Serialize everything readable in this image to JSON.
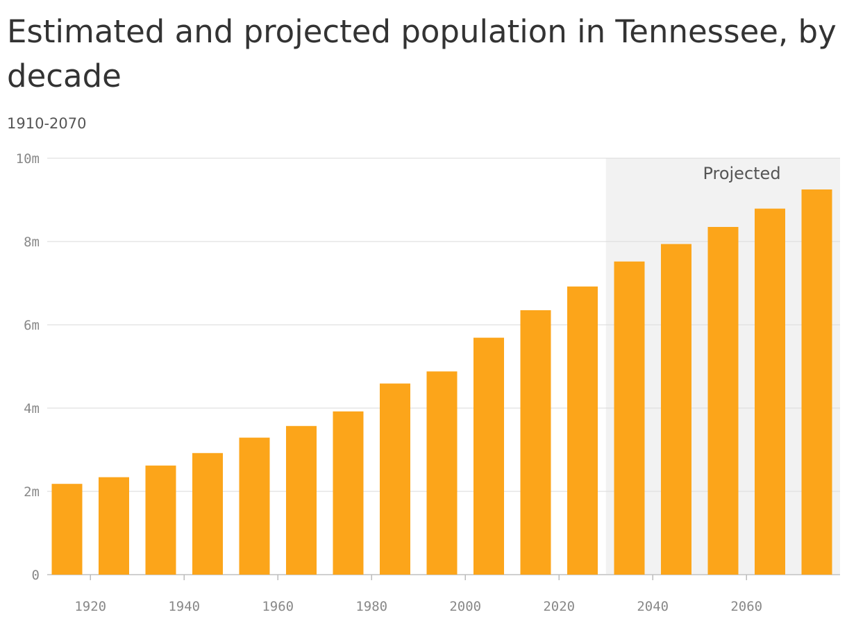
{
  "title": "Estimated and projected population in Tennessee, by decade",
  "subtitle": "1910-2070",
  "colors": {
    "bar": "#fca51a",
    "projected_band": "#f2f2f2",
    "grid": "#e0e0e0",
    "text": "#333333"
  },
  "chart_data": {
    "type": "bar",
    "title": "Estimated and projected population in Tennessee, by decade",
    "subtitle": "1910-2070",
    "xlabel": "",
    "ylabel": "",
    "ylim": [
      0,
      10000000
    ],
    "y_ticks": [
      0,
      2000000,
      4000000,
      6000000,
      8000000,
      10000000
    ],
    "y_tick_labels": [
      "0",
      "2m",
      "4m",
      "6m",
      "8m",
      "10m"
    ],
    "x_tick_labels": [
      "1920",
      "1940",
      "1960",
      "1980",
      "2000",
      "2020",
      "2040",
      "2060"
    ],
    "grid": true,
    "categories": [
      1910,
      1920,
      1930,
      1940,
      1950,
      1960,
      1970,
      1980,
      1990,
      2000,
      2010,
      2020,
      2030,
      2040,
      2050,
      2060,
      2070
    ],
    "values": [
      2180000,
      2340000,
      2620000,
      2920000,
      3290000,
      3570000,
      3920000,
      4590000,
      4880000,
      5690000,
      6350000,
      6920000,
      7520000,
      7940000,
      8350000,
      8790000,
      9250000
    ],
    "projected_range": [
      2030,
      2070
    ],
    "annotations": [
      {
        "text": "Projected"
      }
    ]
  }
}
